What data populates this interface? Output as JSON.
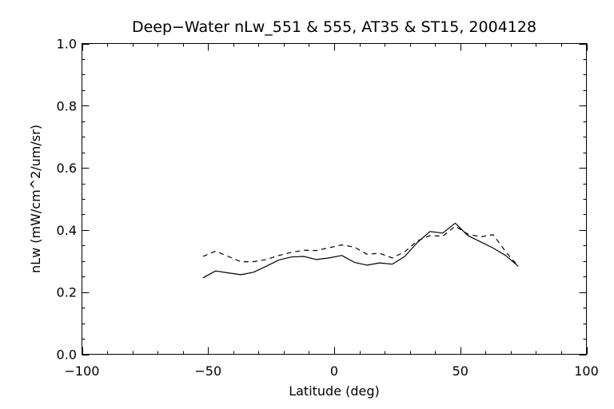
{
  "chart_data": {
    "type": "line",
    "title": "Deep−Water nLw_551 & 555, AT35 & ST15, 2004128",
    "xlabel": "Latitude (deg)",
    "ylabel": "nLw (mW/cm^2/um/sr)",
    "xlim": [
      -100,
      100
    ],
    "ylim": [
      0.0,
      1.0
    ],
    "x_major_ticks": [
      -100,
      -50,
      0,
      50,
      100
    ],
    "x_tick_labels": [
      "−100",
      "−50",
      "0",
      "50",
      "100"
    ],
    "x_minor_step": 10,
    "y_major_ticks": [
      0.0,
      0.2,
      0.4,
      0.6,
      0.8,
      1.0
    ],
    "y_tick_labels": [
      "0.0",
      "0.2",
      "0.4",
      "0.6",
      "0.8",
      "1.0"
    ],
    "y_minor_step": 0.05,
    "grid": false,
    "legend": "none",
    "series": [
      {
        "style": "solid",
        "color": "#000000",
        "x": [
          -52,
          -47,
          -42,
          -37,
          -32,
          -27,
          -22,
          -17,
          -12,
          -7,
          -2,
          3,
          8,
          13,
          18,
          23,
          28,
          33,
          38,
          43,
          48,
          53,
          58,
          63,
          68,
          73
        ],
        "y": [
          0.246,
          0.268,
          0.262,
          0.256,
          0.264,
          0.283,
          0.303,
          0.313,
          0.315,
          0.305,
          0.31,
          0.318,
          0.296,
          0.287,
          0.294,
          0.29,
          0.315,
          0.36,
          0.395,
          0.39,
          0.422,
          0.382,
          0.362,
          0.342,
          0.318,
          0.283
        ]
      },
      {
        "style": "dashed",
        "color": "#000000",
        "x": [
          -52,
          -47,
          -42,
          -37,
          -32,
          -27,
          -22,
          -17,
          -12,
          -7,
          -2,
          3,
          8,
          13,
          18,
          23,
          28,
          33,
          38,
          43,
          48,
          53,
          58,
          63,
          68,
          73
        ],
        "y": [
          0.315,
          0.332,
          0.315,
          0.298,
          0.298,
          0.305,
          0.318,
          0.328,
          0.335,
          0.334,
          0.343,
          0.352,
          0.345,
          0.322,
          0.325,
          0.31,
          0.33,
          0.365,
          0.382,
          0.38,
          0.412,
          0.387,
          0.378,
          0.385,
          0.33,
          0.283
        ]
      }
    ]
  }
}
